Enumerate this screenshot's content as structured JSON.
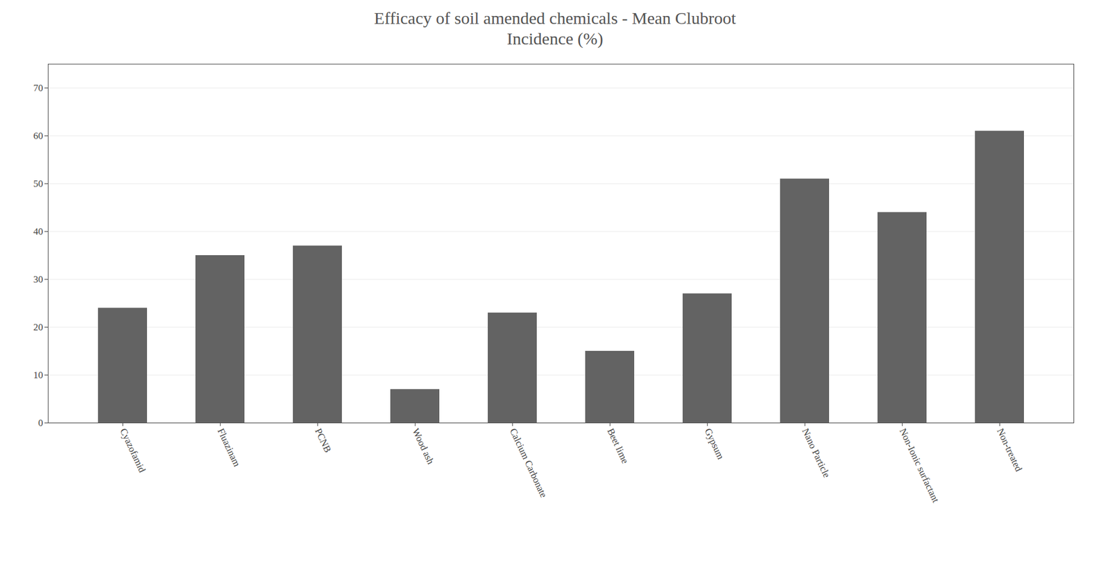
{
  "chart_data": {
    "type": "bar",
    "title": "Efficacy of soil amended chemicals - Mean Clubroot\nIncidence (%)",
    "categories": [
      "Cyazofamid",
      "Fluazinam",
      "PCNB",
      "Wood ash",
      "Calcium Carbonate",
      "Beet lime",
      "Gypsum",
      "Nano Particle",
      "Non-Ionic surfactant",
      "Non-treated"
    ],
    "values": [
      24,
      35,
      37,
      7,
      23,
      15,
      27,
      51,
      44,
      61
    ],
    "color": "#636363",
    "ylim": [
      0,
      75
    ],
    "yticks": [
      0,
      10,
      20,
      30,
      40,
      50,
      60,
      70
    ],
    "grid": true
  }
}
